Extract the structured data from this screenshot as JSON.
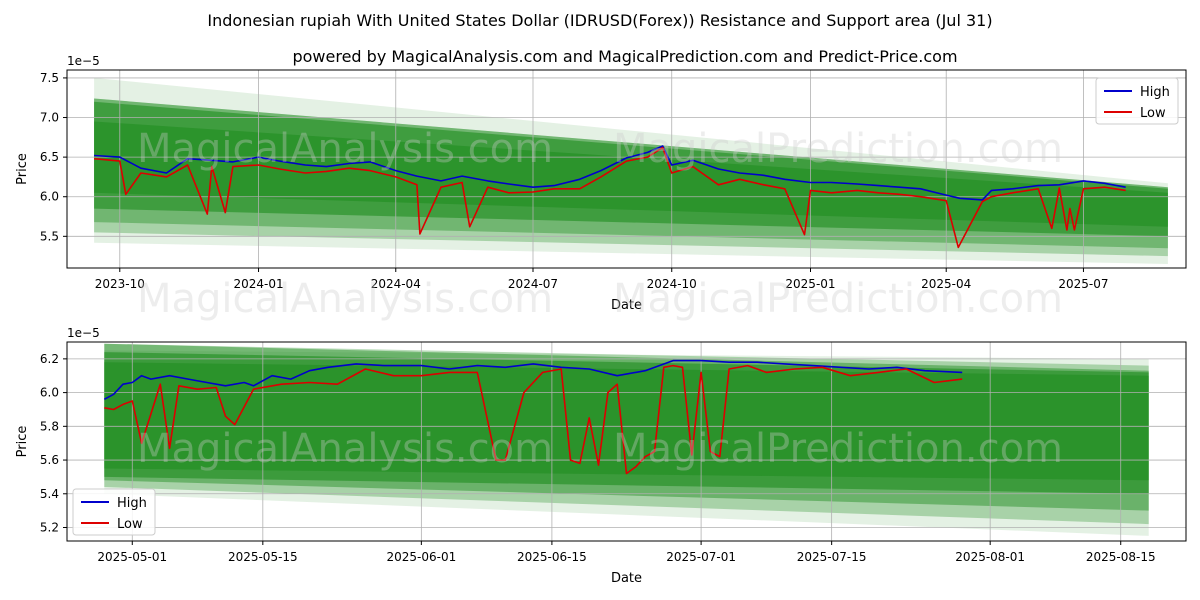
{
  "title": "Indonesian rupiah With United States Dollar (IDRUSD(Forex)) Resistance and Support area (Jul 31)",
  "subtitle": "powered by MagicalAnalysis.com and MagicalPrediction.com and Predict-Price.com",
  "watermarks": [
    "MagicalAnalysis.com",
    "MagicalPrediction.com"
  ],
  "colors": {
    "high": "#0000cc",
    "low": "#dd0000",
    "band": "#1e8c1e"
  },
  "chart_data": [
    {
      "type": "line",
      "title": "",
      "xlabel": "Date",
      "ylabel": "Price",
      "offset_label": "1e−5",
      "grid": true,
      "legend": "top-right",
      "xlim": [
        "2023-08-27",
        "2025-09-07"
      ],
      "ylim": [
        5.1,
        7.6
      ],
      "x_ticks": [
        "2023-10-01",
        "2024-01-01",
        "2024-04-01",
        "2024-07-01",
        "2024-10-01",
        "2025-01-01",
        "2025-04-01",
        "2025-07-01"
      ],
      "x_tick_labels": [
        "2023-10",
        "2024-01",
        "2024-04",
        "2024-07",
        "2024-10",
        "2025-01",
        "2025-04",
        "2025-07"
      ],
      "y_ticks": [
        5.5,
        6.0,
        6.5,
        7.0,
        7.5
      ],
      "y_tick_labels": [
        "5.5",
        "6.0",
        "6.5",
        "7.0",
        "7.5"
      ],
      "bands": [
        {
          "x": [
            "2023-09-14",
            "2025-08-26"
          ],
          "upper": [
            7.5,
            6.17
          ],
          "lower": [
            5.42,
            5.15
          ],
          "alpha": 0.12
        },
        {
          "x": [
            "2023-09-14",
            "2025-08-26"
          ],
          "upper": [
            7.24,
            6.12
          ],
          "lower": [
            5.55,
            5.25
          ],
          "alpha": 0.3
        },
        {
          "x": [
            "2023-09-14",
            "2025-08-26"
          ],
          "upper": [
            7.24,
            6.12
          ],
          "lower": [
            5.68,
            5.35
          ],
          "alpha": 0.4
        },
        {
          "x": [
            "2023-09-14",
            "2025-08-26"
          ],
          "upper": [
            7.2,
            6.1
          ],
          "lower": [
            5.85,
            5.5
          ],
          "alpha": 0.6
        },
        {
          "x": [
            "2023-09-14",
            "2025-08-26"
          ],
          "upper": [
            6.95,
            6.05
          ],
          "lower": [
            6.05,
            5.62
          ],
          "alpha": 0.55
        }
      ],
      "series": [
        {
          "name": "High",
          "x": [
            "2023-09-14",
            "2023-10-01",
            "2023-10-15",
            "2023-11-01",
            "2023-11-15",
            "2023-12-01",
            "2023-12-15",
            "2024-01-01",
            "2024-01-15",
            "2024-02-01",
            "2024-02-15",
            "2024-03-01",
            "2024-03-15",
            "2024-04-01",
            "2024-04-15",
            "2024-05-01",
            "2024-05-15",
            "2024-06-01",
            "2024-06-15",
            "2024-07-01",
            "2024-07-15",
            "2024-08-01",
            "2024-08-15",
            "2024-09-01",
            "2024-09-15",
            "2024-09-25",
            "2024-10-01",
            "2024-10-15",
            "2024-11-01",
            "2024-11-15",
            "2024-12-01",
            "2024-12-15",
            "2025-01-01",
            "2025-01-15",
            "2025-02-01",
            "2025-02-15",
            "2025-03-01",
            "2025-03-15",
            "2025-04-01",
            "2025-04-10",
            "2025-04-25",
            "2025-05-01",
            "2025-05-15",
            "2025-06-01",
            "2025-06-15",
            "2025-07-01",
            "2025-07-15",
            "2025-07-29"
          ],
          "values": [
            6.52,
            6.5,
            6.36,
            6.3,
            6.48,
            6.46,
            6.44,
            6.5,
            6.45,
            6.4,
            6.38,
            6.42,
            6.44,
            6.33,
            6.26,
            6.2,
            6.26,
            6.2,
            6.16,
            6.12,
            6.14,
            6.22,
            6.33,
            6.49,
            6.56,
            6.64,
            6.4,
            6.46,
            6.35,
            6.3,
            6.27,
            6.22,
            6.18,
            6.18,
            6.16,
            6.14,
            6.12,
            6.1,
            6.02,
            5.98,
            5.96,
            6.08,
            6.1,
            6.14,
            6.15,
            6.2,
            6.17,
            6.12
          ]
        },
        {
          "name": "Low",
          "x": [
            "2023-09-14",
            "2023-10-01",
            "2023-10-05",
            "2023-10-15",
            "2023-11-01",
            "2023-11-15",
            "2023-11-28",
            "2023-12-01",
            "2023-12-10",
            "2023-12-15",
            "2024-01-01",
            "2024-01-15",
            "2024-02-01",
            "2024-02-15",
            "2024-03-01",
            "2024-03-15",
            "2024-04-01",
            "2024-04-15",
            "2024-04-17",
            "2024-05-01",
            "2024-05-15",
            "2024-05-20",
            "2024-06-01",
            "2024-06-15",
            "2024-07-01",
            "2024-07-15",
            "2024-08-01",
            "2024-08-15",
            "2024-09-01",
            "2024-09-15",
            "2024-09-25",
            "2024-10-01",
            "2024-10-15",
            "2024-11-01",
            "2024-11-15",
            "2024-12-01",
            "2024-12-15",
            "2024-12-28",
            "2025-01-01",
            "2025-01-15",
            "2025-02-01",
            "2025-02-15",
            "2025-03-01",
            "2025-03-15",
            "2025-04-01",
            "2025-04-09",
            "2025-04-25",
            "2025-05-01",
            "2025-05-15",
            "2025-06-01",
            "2025-06-10",
            "2025-06-15",
            "2025-06-20",
            "2025-06-22",
            "2025-06-25",
            "2025-07-01",
            "2025-07-15",
            "2025-07-29"
          ],
          "values": [
            6.48,
            6.45,
            6.03,
            6.3,
            6.25,
            6.4,
            5.78,
            6.38,
            5.8,
            6.38,
            6.4,
            6.35,
            6.3,
            6.32,
            6.36,
            6.33,
            6.25,
            6.15,
            5.53,
            6.12,
            6.18,
            5.62,
            6.12,
            6.05,
            6.06,
            6.1,
            6.1,
            6.25,
            6.45,
            6.5,
            6.62,
            6.3,
            6.38,
            6.15,
            6.22,
            6.15,
            6.1,
            5.52,
            6.08,
            6.05,
            6.08,
            6.05,
            6.03,
            6.0,
            5.95,
            5.36,
            5.94,
            6.0,
            6.05,
            6.1,
            5.6,
            6.11,
            5.58,
            5.85,
            5.58,
            6.1,
            6.12,
            6.08
          ]
        }
      ]
    },
    {
      "type": "line",
      "title": "",
      "xlabel": "Date",
      "ylabel": "Price",
      "offset_label": "1e−5",
      "grid": true,
      "legend": "bottom-left",
      "xlim": [
        "2025-04-24",
        "2025-08-22"
      ],
      "ylim": [
        5.12,
        6.3
      ],
      "x_ticks": [
        "2025-05-01",
        "2025-05-15",
        "2025-06-01",
        "2025-06-15",
        "2025-07-01",
        "2025-07-15",
        "2025-08-01",
        "2025-08-15"
      ],
      "x_tick_labels": [
        "2025-05-01",
        "2025-05-15",
        "2025-06-01",
        "2025-06-15",
        "2025-07-01",
        "2025-07-15",
        "2025-08-01",
        "2025-08-15"
      ],
      "y_ticks": [
        5.2,
        5.4,
        5.6,
        5.8,
        6.0,
        6.2
      ],
      "y_tick_labels": [
        "5.2",
        "5.4",
        "5.6",
        "5.8",
        "6.0",
        "6.2"
      ],
      "bands": [
        {
          "x": [
            "2025-04-28",
            "2025-08-18"
          ],
          "upper": [
            6.25,
            6.2
          ],
          "lower": [
            5.4,
            5.15
          ],
          "alpha": 0.12
        },
        {
          "x": [
            "2025-04-28",
            "2025-08-18"
          ],
          "upper": [
            6.29,
            6.16
          ],
          "lower": [
            5.44,
            5.22
          ],
          "alpha": 0.3
        },
        {
          "x": [
            "2025-04-28",
            "2025-08-18"
          ],
          "upper": [
            6.29,
            6.13
          ],
          "lower": [
            5.48,
            5.3
          ],
          "alpha": 0.45
        },
        {
          "x": [
            "2025-04-28",
            "2025-08-18"
          ],
          "upper": [
            6.24,
            6.12
          ],
          "lower": [
            5.5,
            5.4
          ],
          "alpha": 0.6
        },
        {
          "x": [
            "2025-04-28",
            "2025-08-18"
          ],
          "upper": [
            6.18,
            6.1
          ],
          "lower": [
            5.55,
            5.48
          ],
          "alpha": 0.55
        }
      ],
      "series": [
        {
          "name": "High",
          "x": [
            "2025-04-28",
            "2025-04-29",
            "2025-04-30",
            "2025-05-01",
            "2025-05-02",
            "2025-05-03",
            "2025-05-05",
            "2025-05-07",
            "2025-05-09",
            "2025-05-11",
            "2025-05-13",
            "2025-05-14",
            "2025-05-16",
            "2025-05-18",
            "2025-05-20",
            "2025-05-22",
            "2025-05-25",
            "2025-05-28",
            "2025-06-01",
            "2025-06-04",
            "2025-06-07",
            "2025-06-10",
            "2025-06-13",
            "2025-06-16",
            "2025-06-19",
            "2025-06-22",
            "2025-06-25",
            "2025-06-28",
            "2025-07-01",
            "2025-07-04",
            "2025-07-07",
            "2025-07-10",
            "2025-07-13",
            "2025-07-16",
            "2025-07-19",
            "2025-07-22",
            "2025-07-25",
            "2025-07-29"
          ],
          "values": [
            5.96,
            5.99,
            6.05,
            6.06,
            6.1,
            6.08,
            6.1,
            6.08,
            6.06,
            6.04,
            6.06,
            6.04,
            6.1,
            6.08,
            6.13,
            6.15,
            6.17,
            6.16,
            6.16,
            6.14,
            6.16,
            6.15,
            6.17,
            6.15,
            6.14,
            6.1,
            6.13,
            6.19,
            6.19,
            6.18,
            6.18,
            6.17,
            6.16,
            6.15,
            6.14,
            6.15,
            6.13,
            6.12
          ]
        },
        {
          "name": "Low",
          "x": [
            "2025-04-28",
            "2025-04-29",
            "2025-04-30",
            "2025-05-01",
            "2025-05-02",
            "2025-05-04",
            "2025-05-05",
            "2025-05-06",
            "2025-05-08",
            "2025-05-10",
            "2025-05-11",
            "2025-05-12",
            "2025-05-14",
            "2025-05-17",
            "2025-05-20",
            "2025-05-23",
            "2025-05-26",
            "2025-05-29",
            "2025-06-01",
            "2025-06-04",
            "2025-06-07",
            "2025-06-09",
            "2025-06-10",
            "2025-06-12",
            "2025-06-14",
            "2025-06-16",
            "2025-06-17",
            "2025-06-18",
            "2025-06-19",
            "2025-06-20",
            "2025-06-21",
            "2025-06-22",
            "2025-06-23",
            "2025-06-24",
            "2025-06-25",
            "2025-06-26",
            "2025-06-27",
            "2025-06-28",
            "2025-06-29",
            "2025-06-30",
            "2025-07-01",
            "2025-07-02",
            "2025-07-03",
            "2025-07-04",
            "2025-07-06",
            "2025-07-08",
            "2025-07-11",
            "2025-07-14",
            "2025-07-17",
            "2025-07-20",
            "2025-07-23",
            "2025-07-26",
            "2025-07-29"
          ],
          "values": [
            5.91,
            5.9,
            5.93,
            5.95,
            5.7,
            6.05,
            5.67,
            6.04,
            6.02,
            6.03,
            5.86,
            5.81,
            6.02,
            6.05,
            6.06,
            6.05,
            6.14,
            6.1,
            6.1,
            6.12,
            6.12,
            5.6,
            5.6,
            6.0,
            6.12,
            6.14,
            5.6,
            5.58,
            5.85,
            5.57,
            6.0,
            6.05,
            5.52,
            5.56,
            5.62,
            5.65,
            6.15,
            6.16,
            6.15,
            5.63,
            6.12,
            5.65,
            5.62,
            6.14,
            6.16,
            6.12,
            6.14,
            6.15,
            6.1,
            6.12,
            6.14,
            6.06,
            6.08
          ]
        }
      ]
    }
  ]
}
